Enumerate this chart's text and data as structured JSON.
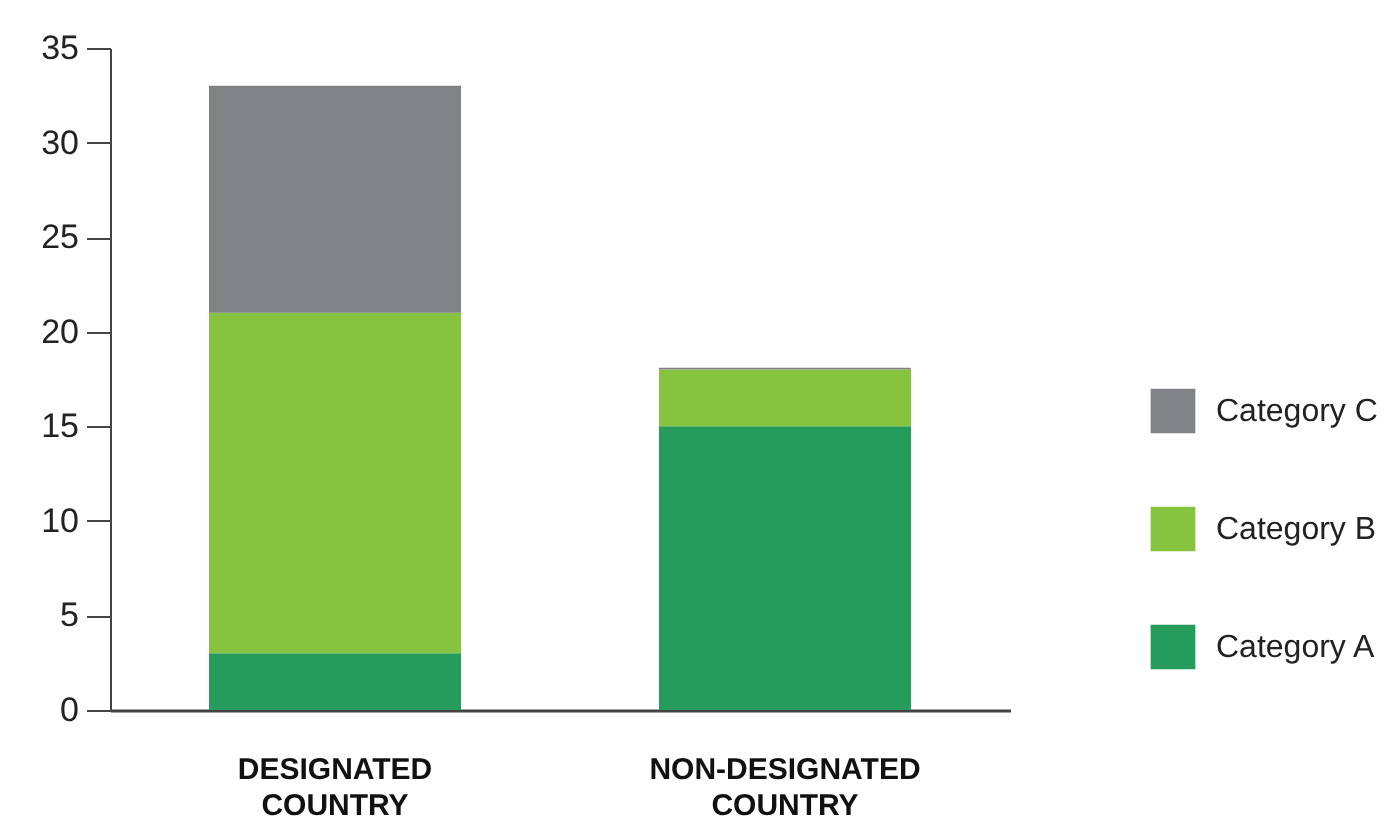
{
  "chart_data": {
    "type": "bar",
    "stacked": true,
    "categories": [
      "DESIGNATED COUNTRY",
      "NON-DESIGNATED COUNTRY"
    ],
    "series": [
      {
        "name": "Category A",
        "color": "#259b5c",
        "values": [
          3,
          15
        ]
      },
      {
        "name": "Category B",
        "color": "#86c440",
        "values": [
          18,
          3
        ]
      },
      {
        "name": "Category C",
        "color": "#818285",
        "values": [
          12,
          0.1
        ]
      }
    ],
    "ylim": [
      0,
      35
    ],
    "yticks": [
      0,
      5,
      10,
      15,
      20,
      25,
      30,
      35
    ],
    "grid": false,
    "legend": "right"
  }
}
